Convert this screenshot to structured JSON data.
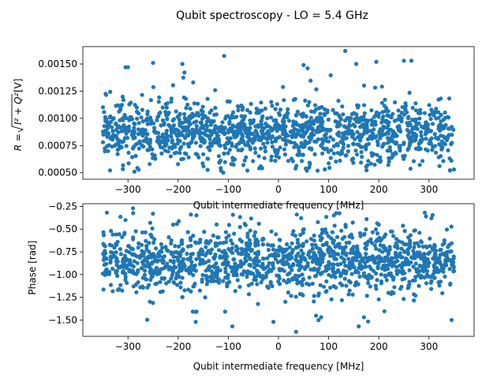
{
  "title": "Qubit spectroscopy - LO = 5.4 GHz",
  "chart_data": [
    {
      "type": "scatter",
      "xlabel": "Qubit intermediate frequency [MHz]",
      "ylabel_parts": {
        "main": "R = ",
        "radicand": "I² + Q²",
        "unit": " [V]"
      },
      "xlim": [
        -390,
        390
      ],
      "ylim": [
        0.00044,
        0.00166
      ],
      "xticks": [
        -300,
        -200,
        -100,
        0,
        100,
        200,
        300
      ],
      "yticks": [
        0.0005,
        0.00075,
        0.001,
        0.00125,
        0.0015
      ],
      "ytick_labels": [
        "0.00050",
        "0.00075",
        "0.00100",
        "0.00125",
        "0.00150"
      ],
      "x_range": [
        -350,
        350
      ],
      "n_points": 1400,
      "center": 0.00088,
      "spread": 0.00013,
      "marker_color": "#1f77b4",
      "highlights": [
        {
          "x": 133,
          "y": 0.00162
        },
        {
          "x": -287,
          "y": 0.00051
        },
        {
          "x": -110,
          "y": 0.0005
        },
        {
          "x": -62,
          "y": 0.00052
        },
        {
          "x": -250,
          "y": 0.00151
        },
        {
          "x": -305,
          "y": 0.00147
        },
        {
          "x": -300,
          "y": 0.00147
        },
        {
          "x": 50,
          "y": 0.00149
        },
        {
          "x": 155,
          "y": 0.0015
        },
        {
          "x": 195,
          "y": 0.00152
        },
        {
          "x": 250,
          "y": 0.00153
        },
        {
          "x": 265,
          "y": 0.00153
        },
        {
          "x": 342,
          "y": 0.00052
        },
        {
          "x": 58,
          "y": 0.00146
        },
        {
          "x": -170,
          "y": 0.00133
        }
      ]
    },
    {
      "type": "scatter",
      "xlabel": "Qubit intermediate frequency [MHz]",
      "ylabel": "Phase [rad]",
      "xlim": [
        -390,
        390
      ],
      "ylim": [
        -1.68,
        -0.22
      ],
      "xticks": [
        -300,
        -200,
        -100,
        0,
        100,
        200,
        300
      ],
      "yticks": [
        -1.5,
        -1.25,
        -1.0,
        -0.75,
        -0.5,
        -0.25
      ],
      "ytick_labels": [
        "−1.50",
        "−1.25",
        "−1.00",
        "−0.75",
        "−0.50",
        "−0.25"
      ],
      "x_range": [
        -350,
        350
      ],
      "n_points": 1400,
      "center": -0.85,
      "spread": 0.16,
      "marker_color": "#1f77b4",
      "highlights": [
        {
          "x": -290,
          "y": -0.27
        },
        {
          "x": 305,
          "y": -0.38
        },
        {
          "x": 35,
          "y": -1.63
        },
        {
          "x": -92,
          "y": -1.57
        },
        {
          "x": 160,
          "y": -1.57
        },
        {
          "x": -165,
          "y": -1.52
        },
        {
          "x": 85,
          "y": -1.47
        },
        {
          "x": -10,
          "y": -1.52
        },
        {
          "x": -305,
          "y": -0.4
        },
        {
          "x": 345,
          "y": -1.5
        },
        {
          "x": -210,
          "y": -0.45
        },
        {
          "x": 200,
          "y": -0.45
        }
      ]
    }
  ]
}
